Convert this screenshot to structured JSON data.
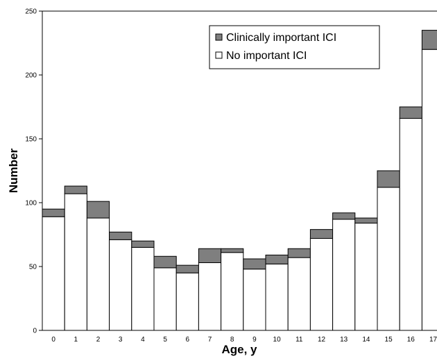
{
  "chart_data": {
    "type": "bar",
    "stacked": true,
    "categories": [
      "0",
      "1",
      "2",
      "3",
      "4",
      "5",
      "6",
      "7",
      "8",
      "9",
      "10",
      "11",
      "12",
      "13",
      "14",
      "15",
      "16",
      "17"
    ],
    "series": [
      {
        "name": "No important ICI",
        "color": "#ffffff",
        "values": [
          89,
          107,
          88,
          71,
          65,
          49,
          45,
          53,
          61,
          48,
          52,
          57,
          72,
          87,
          84,
          112,
          166,
          220
        ]
      },
      {
        "name": "Clinically important ICI",
        "color": "#7f7f7f",
        "values": [
          6,
          6,
          13,
          6,
          5,
          9,
          6,
          11,
          3,
          8,
          7,
          7,
          7,
          5,
          4,
          13,
          9,
          15
        ]
      }
    ],
    "xlabel": "Age, y",
    "ylabel": "Number",
    "ylim": [
      0,
      250
    ],
    "yticks": [
      0,
      50,
      100,
      150,
      200,
      250
    ],
    "legend_position": "top-right",
    "legend_order": [
      "Clinically important ICI",
      "No important ICI"
    ],
    "grid": false
  }
}
